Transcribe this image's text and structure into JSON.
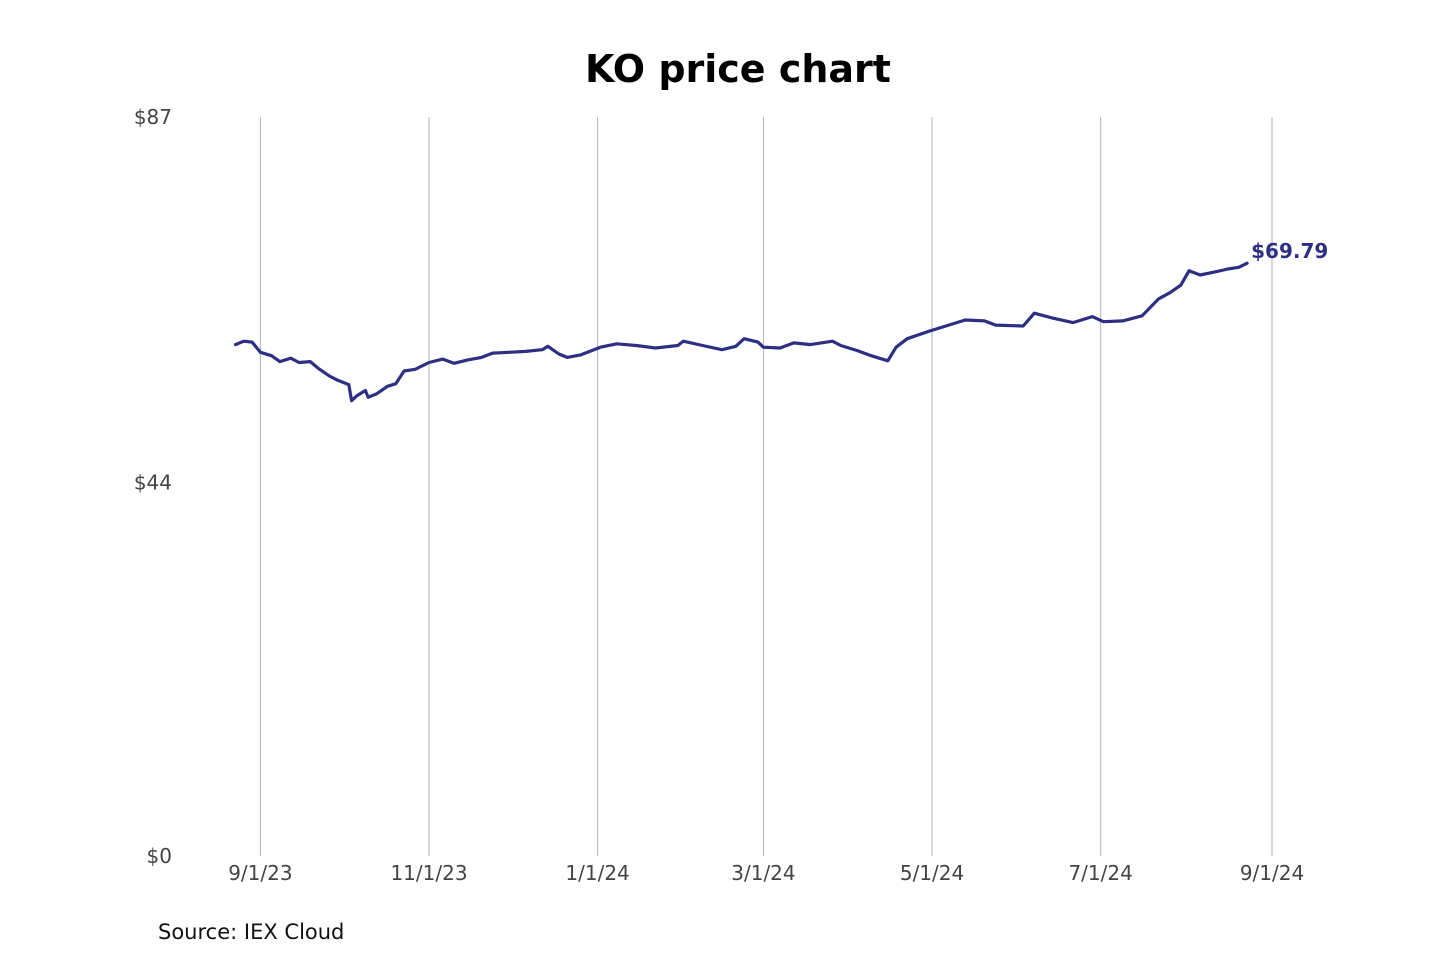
{
  "chart_data": {
    "type": "line",
    "title": "KO price chart",
    "xlabel": "",
    "ylabel": "",
    "ylim": [
      0,
      87
    ],
    "xlim": [
      "2023-08-21",
      "2024-09-01"
    ],
    "y_ticks": [
      {
        "value": 87,
        "label": "$87"
      },
      {
        "value": 44,
        "label": "$44"
      },
      {
        "value": 0,
        "label": "$0"
      }
    ],
    "x_ticks": [
      {
        "date": "2023-09-01",
        "label": "9/1/23"
      },
      {
        "date": "2023-11-01",
        "label": "11/1/23"
      },
      {
        "date": "2024-01-01",
        "label": "1/1/24"
      },
      {
        "date": "2024-03-01",
        "label": "3/1/24"
      },
      {
        "date": "2024-05-01",
        "label": "5/1/24"
      },
      {
        "date": "2024-07-01",
        "label": "7/1/24"
      },
      {
        "date": "2024-09-01",
        "label": "9/1/24"
      }
    ],
    "grid": {
      "vertical": true,
      "horizontal": false
    },
    "series": [
      {
        "name": "KO",
        "color": "#2e2f82",
        "points": [
          [
            "2023-08-23",
            60.2
          ],
          [
            "2023-08-26",
            60.6
          ],
          [
            "2023-08-29",
            60.5
          ],
          [
            "2023-09-01",
            59.3
          ],
          [
            "2023-09-05",
            58.9
          ],
          [
            "2023-09-08",
            58.2
          ],
          [
            "2023-09-12",
            58.6
          ],
          [
            "2023-09-15",
            58.1
          ],
          [
            "2023-09-19",
            58.2
          ],
          [
            "2023-09-22",
            57.4
          ],
          [
            "2023-09-26",
            56.5
          ],
          [
            "2023-09-29",
            56.0
          ],
          [
            "2023-10-03",
            55.5
          ],
          [
            "2023-10-04",
            53.6
          ],
          [
            "2023-10-06",
            54.2
          ],
          [
            "2023-10-09",
            54.8
          ],
          [
            "2023-10-10",
            54.0
          ],
          [
            "2023-10-13",
            54.4
          ],
          [
            "2023-10-17",
            55.3
          ],
          [
            "2023-10-20",
            55.6
          ],
          [
            "2023-10-23",
            57.1
          ],
          [
            "2023-10-27",
            57.3
          ],
          [
            "2023-11-01",
            58.1
          ],
          [
            "2023-11-06",
            58.5
          ],
          [
            "2023-11-10",
            58.0
          ],
          [
            "2023-11-15",
            58.4
          ],
          [
            "2023-11-20",
            58.7
          ],
          [
            "2023-11-24",
            59.2
          ],
          [
            "2023-11-30",
            59.3
          ],
          [
            "2023-12-06",
            59.4
          ],
          [
            "2023-12-12",
            59.6
          ],
          [
            "2023-12-14",
            60.0
          ],
          [
            "2023-12-18",
            59.1
          ],
          [
            "2023-12-21",
            58.7
          ],
          [
            "2023-12-26",
            59.0
          ],
          [
            "2024-01-02",
            59.9
          ],
          [
            "2024-01-08",
            60.3
          ],
          [
            "2024-01-15",
            60.1
          ],
          [
            "2024-01-22",
            59.8
          ],
          [
            "2024-01-30",
            60.1
          ],
          [
            "2024-02-01",
            60.6
          ],
          [
            "2024-02-08",
            60.1
          ],
          [
            "2024-02-15",
            59.6
          ],
          [
            "2024-02-20",
            60.0
          ],
          [
            "2024-02-23",
            60.9
          ],
          [
            "2024-02-28",
            60.5
          ],
          [
            "2024-03-01",
            59.9
          ],
          [
            "2024-03-07",
            59.8
          ],
          [
            "2024-03-12",
            60.4
          ],
          [
            "2024-03-18",
            60.2
          ],
          [
            "2024-03-26",
            60.6
          ],
          [
            "2024-03-29",
            60.1
          ],
          [
            "2024-04-04",
            59.5
          ],
          [
            "2024-04-09",
            58.9
          ],
          [
            "2024-04-15",
            58.3
          ],
          [
            "2024-04-18",
            59.9
          ],
          [
            "2024-04-22",
            60.9
          ],
          [
            "2024-04-30",
            61.8
          ],
          [
            "2024-05-06",
            62.4
          ],
          [
            "2024-05-13",
            63.1
          ],
          [
            "2024-05-20",
            63.0
          ],
          [
            "2024-05-24",
            62.5
          ],
          [
            "2024-06-03",
            62.4
          ],
          [
            "2024-06-07",
            63.9
          ],
          [
            "2024-06-14",
            63.3
          ],
          [
            "2024-06-21",
            62.8
          ],
          [
            "2024-06-28",
            63.5
          ],
          [
            "2024-07-02",
            62.9
          ],
          [
            "2024-07-09",
            63.0
          ],
          [
            "2024-07-16",
            63.6
          ],
          [
            "2024-07-22",
            65.6
          ],
          [
            "2024-07-26",
            66.3
          ],
          [
            "2024-07-30",
            67.2
          ],
          [
            "2024-08-02",
            68.9
          ],
          [
            "2024-08-06",
            68.4
          ],
          [
            "2024-08-12",
            68.8
          ],
          [
            "2024-08-16",
            69.1
          ],
          [
            "2024-08-20",
            69.3
          ],
          [
            "2024-08-23",
            69.79
          ]
        ]
      }
    ],
    "last_value_label": "$69.79",
    "annotations": [
      "Source: IEX Cloud"
    ]
  }
}
